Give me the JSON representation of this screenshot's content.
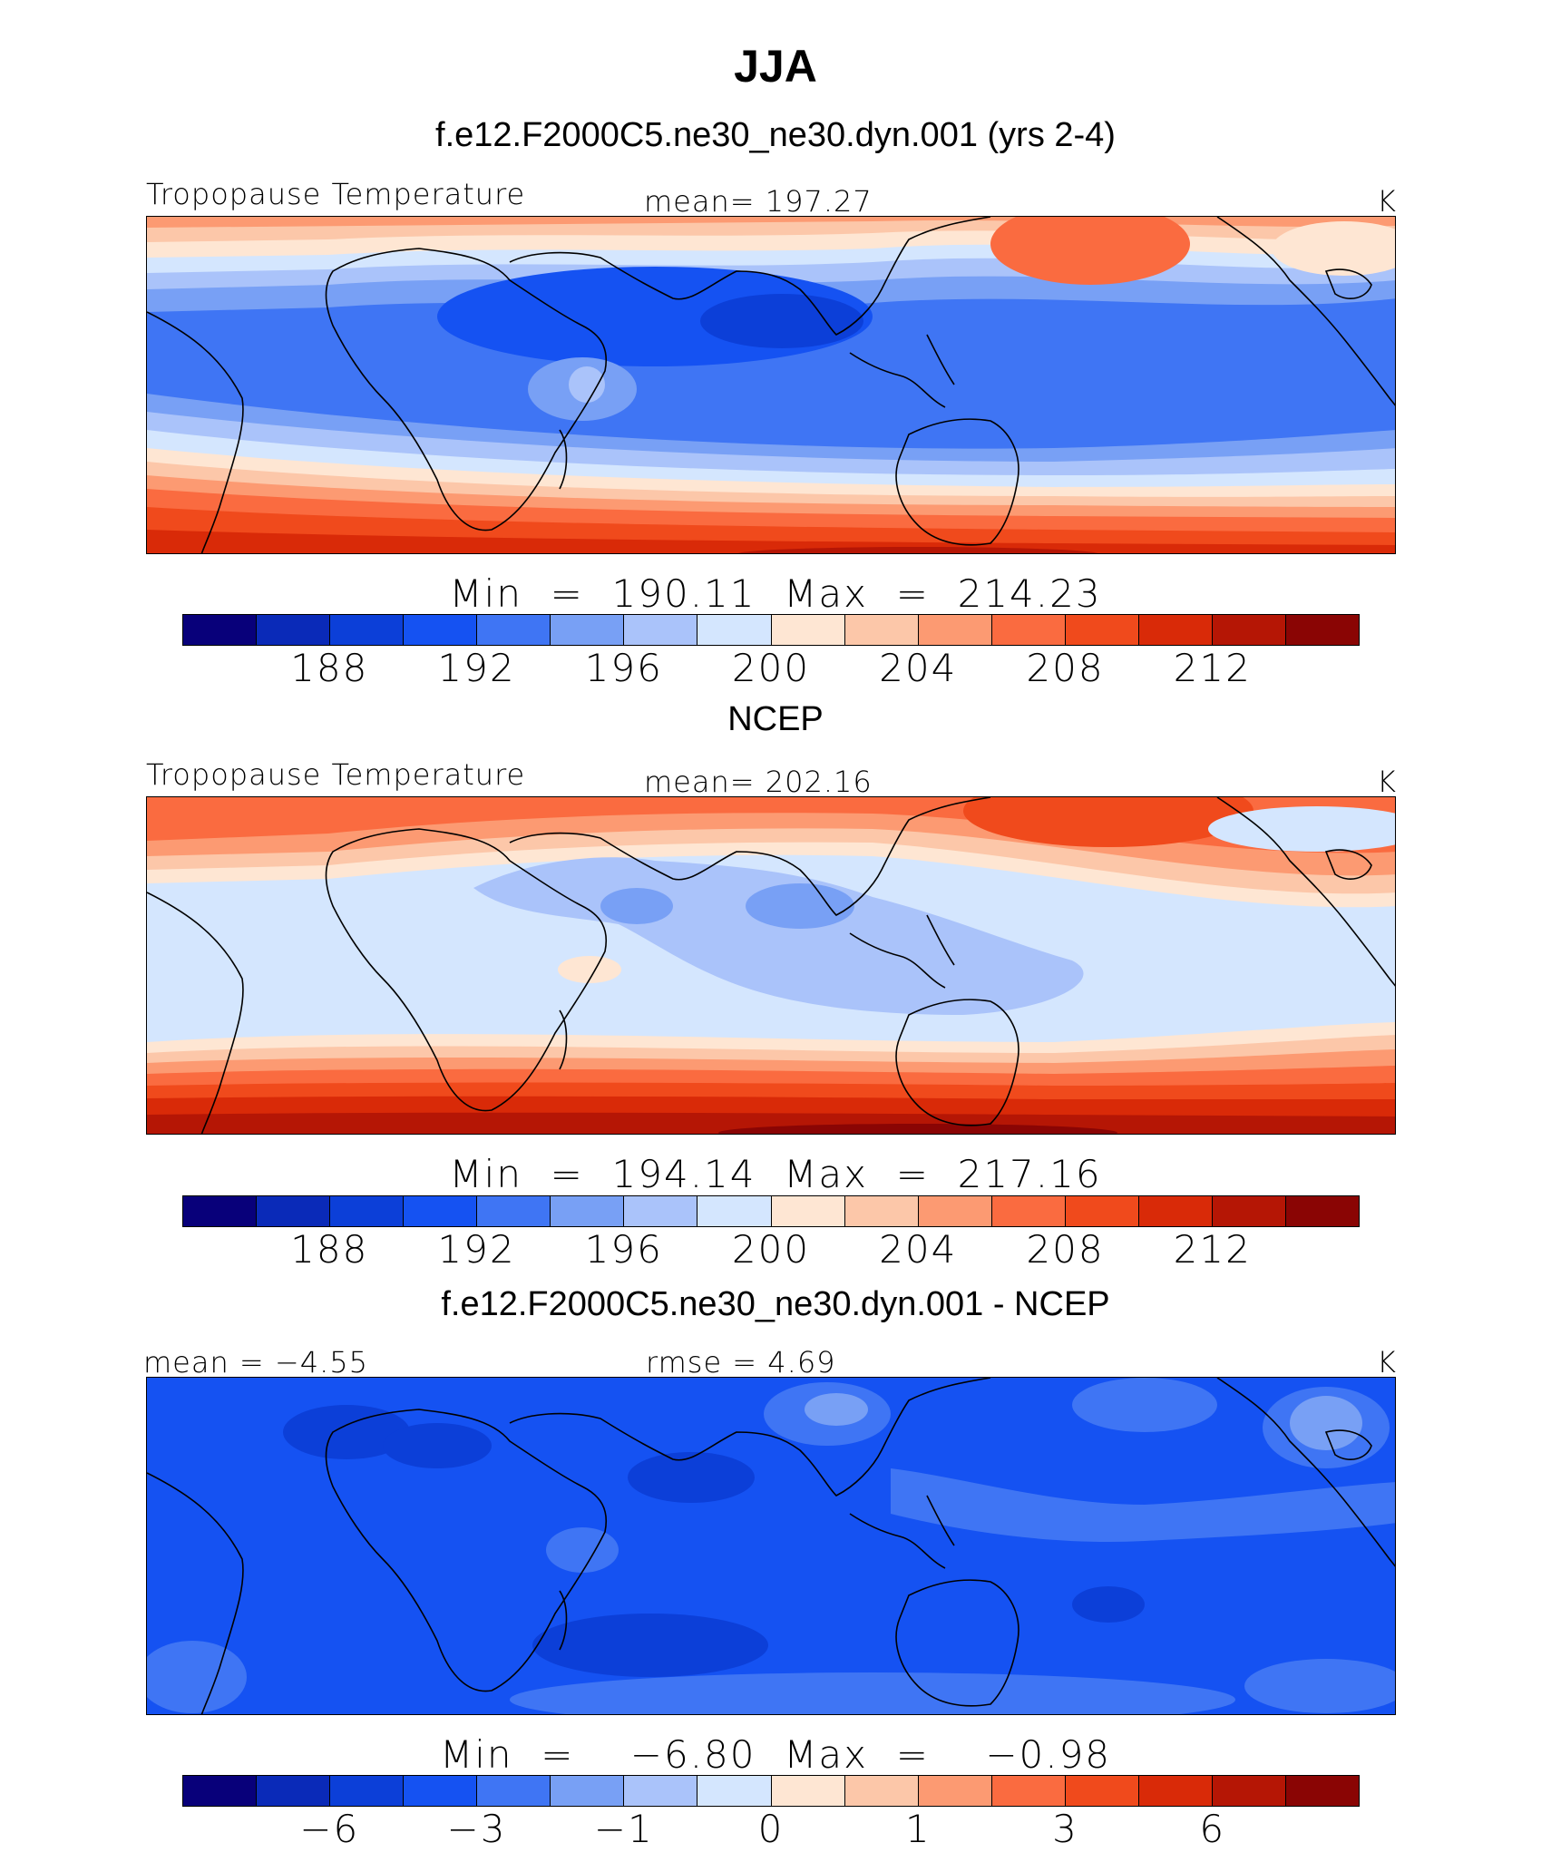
{
  "title": "JJA",
  "colors": [
    "#08007a",
    "#0a2ab8",
    "#0c3fd8",
    "#1552f2",
    "#3f75f4",
    "#78a0f5",
    "#aac3fa",
    "#d4e6fe",
    "#fee6d3",
    "#fcc7a9",
    "#fc9a72",
    "#fa6b40",
    "#f04a1c",
    "#d92a08",
    "#b51605",
    "#8a0504"
  ],
  "panels": [
    {
      "title": "f.e12.F2000C5.ne30_ne30.dyn.001 (yrs 2-4)",
      "left_label": "Tropopause Temperature",
      "center_label": "mean=  197.27",
      "unit": "K",
      "minmax": "Min  =  190.11  Max  =  214.23",
      "ticks": [
        "188",
        "192",
        "196",
        "200",
        "204",
        "208",
        "212"
      ]
    },
    {
      "title": "NCEP",
      "left_label": "Tropopause Temperature",
      "center_label": "mean=  202.16",
      "unit": "K",
      "minmax": "Min  =  194.14  Max  =  217.16",
      "ticks": [
        "188",
        "192",
        "196",
        "200",
        "204",
        "208",
        "212"
      ]
    },
    {
      "title": "f.e12.F2000C5.ne30_ne30.dyn.001 - NCEP",
      "left_label": "mean  =    −4.55",
      "center_label": "rmse  =     4.69",
      "unit": "K",
      "minmax": "Min  =    −6.80  Max  =    −0.98",
      "ticks": [
        "−6",
        "−3",
        "−1",
        "0",
        "1",
        "3",
        "6"
      ]
    }
  ]
}
